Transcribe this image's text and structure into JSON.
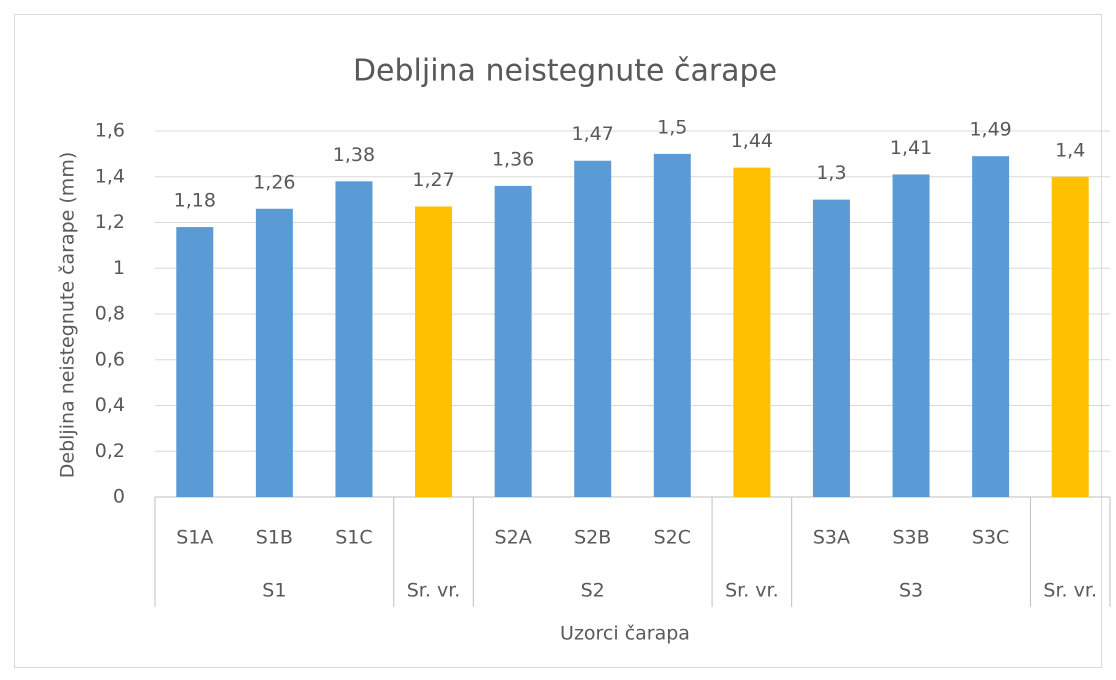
{
  "chart_data": {
    "type": "bar",
    "title": "Debljina neistegnute čarape",
    "ylabel": "Debljina neistegnute čarape (mm)",
    "xlabel": "Uzorci čarapa",
    "categories": [
      "S1A",
      "S1B",
      "S1C",
      null,
      "S2A",
      "S2B",
      "S2C",
      null,
      "S3A",
      "S3B",
      "S3C",
      null
    ],
    "groups": [
      {
        "name": "S1",
        "size": 3
      },
      {
        "name": "Sr. vr.",
        "size": 1
      },
      {
        "name": "S2",
        "size": 3
      },
      {
        "name": "Sr. vr.",
        "size": 1
      },
      {
        "name": "S3",
        "size": 3
      },
      {
        "name": "Sr. vr.",
        "size": 1
      }
    ],
    "values": [
      1.18,
      1.26,
      1.38,
      1.27,
      1.36,
      1.47,
      1.5,
      1.44,
      1.3,
      1.41,
      1.49,
      1.4
    ],
    "value_labels": [
      "1,18",
      "1,26",
      "1,38",
      "1,27",
      "1,36",
      "1,47",
      "1,5",
      "1,44",
      "1,3",
      "1,41",
      "1,49",
      "1,4"
    ],
    "colors": [
      "#5b9bd5",
      "#5b9bd5",
      "#5b9bd5",
      "#ffc000",
      "#5b9bd5",
      "#5b9bd5",
      "#5b9bd5",
      "#ffc000",
      "#5b9bd5",
      "#5b9bd5",
      "#5b9bd5",
      "#ffc000"
    ],
    "ylim": [
      0,
      1.6
    ],
    "yticks": [
      0,
      {
        "value": 0.2,
        "label": "0,2"
      },
      {
        "value": 0.4,
        "label": "0,4"
      },
      {
        "value": 0.6,
        "label": "0,6"
      },
      {
        "value": 0.8,
        "label": "0,8"
      },
      1,
      {
        "value": 1.2,
        "label": "1,2"
      },
      {
        "value": 1.4,
        "label": "1,4"
      },
      {
        "value": 1.6,
        "label": "1,6"
      }
    ],
    "grid": true
  }
}
